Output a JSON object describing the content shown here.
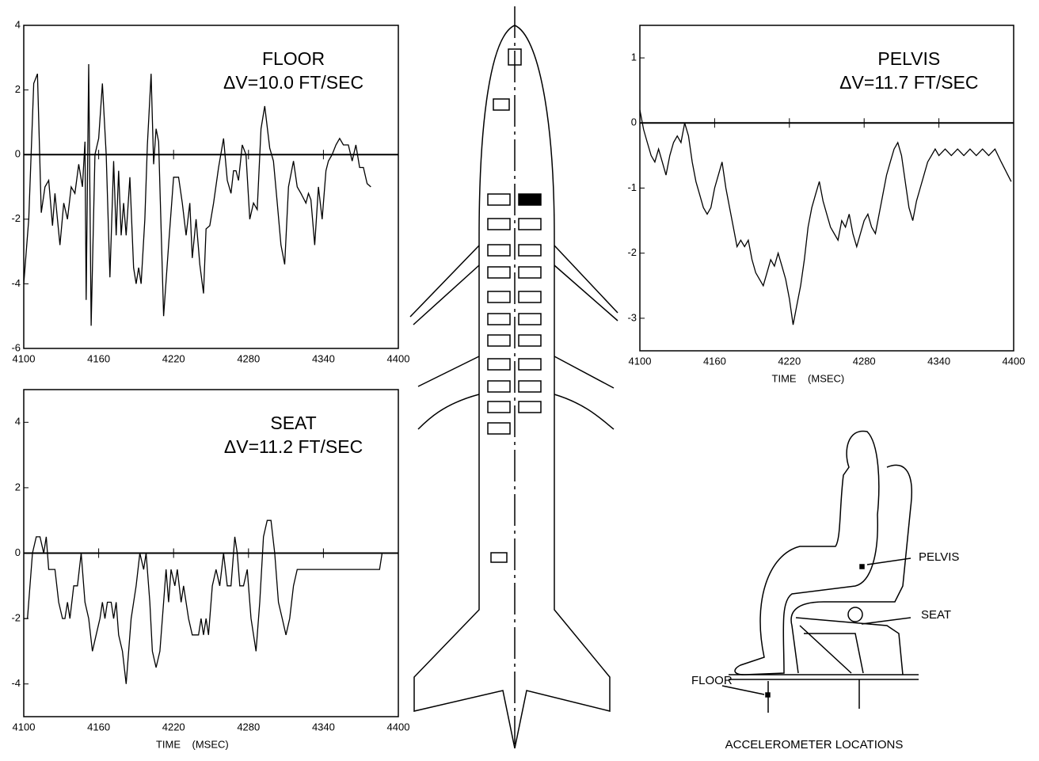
{
  "chart_data": [
    {
      "type": "line",
      "title": "FLOOR",
      "annotation": "ΔV=10.0 FT/SEC",
      "color": "#000000",
      "x": [
        4100,
        4104,
        4108,
        4111,
        4114,
        4117,
        4120,
        4123,
        4125,
        4129,
        4132,
        4135,
        4138,
        4141,
        4144,
        4147,
        4149,
        4150,
        4152,
        4154,
        4157,
        4160,
        4163,
        4166,
        4169,
        4172,
        4174,
        4176,
        4178,
        4180,
        4182,
        4185,
        4188,
        4190,
        4192,
        4194,
        4197,
        4199,
        4202,
        4204,
        4206,
        4208,
        4212,
        4216,
        4220,
        4224,
        4227,
        4230,
        4233,
        4235,
        4238,
        4241,
        4244,
        4246,
        4249,
        4252,
        4256,
        4260,
        4263,
        4266,
        4268,
        4270,
        4272,
        4275,
        4278,
        4281,
        4284,
        4287,
        4290,
        4293,
        4297,
        4300,
        4303,
        4306,
        4309,
        4312,
        4316,
        4319,
        4322,
        4326,
        4328,
        4330,
        4333,
        4336,
        4339,
        4342,
        4344,
        4347,
        4350,
        4353,
        4356,
        4360,
        4363,
        4366,
        4369,
        4372,
        4375,
        4378
      ],
      "values": [
        -4,
        -2,
        2.2,
        2.5,
        -1.8,
        -1,
        -0.8,
        -2.2,
        -1.2,
        -2.8,
        -1.5,
        -2,
        -1,
        -1.2,
        -0.3,
        -1,
        0.4,
        -4.5,
        2.8,
        -5.3,
        0,
        0.5,
        2.2,
        0,
        -3.8,
        -0.2,
        -2.5,
        -0.5,
        -2.5,
        -1.5,
        -2.5,
        -0.7,
        -3.5,
        -4,
        -3.5,
        -4,
        -2,
        0.3,
        2.5,
        -0.3,
        0.8,
        0.4,
        -5,
        -2.8,
        -0.7,
        -0.7,
        -1.5,
        -2.5,
        -1.5,
        -3.2,
        -2,
        -3.4,
        -4.3,
        -2.3,
        -2.2,
        -1.5,
        -0.4,
        0.5,
        -0.8,
        -1.2,
        -0.5,
        -0.5,
        -0.8,
        0.3,
        0,
        -2,
        -1.5,
        -1.7,
        0.8,
        1.5,
        0.2,
        -0.2,
        -1.5,
        -2.8,
        -3.4,
        -1,
        -0.2,
        -1,
        -1.2,
        -1.5,
        -1.2,
        -1.4,
        -2.8,
        -1,
        -2,
        -0.5,
        -0.2,
        0,
        0.3,
        0.5,
        0.3,
        0.3,
        -0.2,
        0.3,
        -0.4,
        -0.4,
        -0.9,
        -1
      ],
      "xlim": [
        4100,
        4400
      ],
      "xticks": [
        4100,
        4160,
        4220,
        4280,
        4340,
        4400
      ],
      "ylim": [
        -6,
        4
      ],
      "yticks": [
        -6,
        -4,
        -2,
        0,
        2,
        4
      ],
      "grid": false
    },
    {
      "type": "line",
      "title": "PELVIS",
      "annotation": "ΔV=11.7 FT/SEC",
      "xlabel": "TIME    (MSEC)",
      "color": "#000000",
      "x": [
        4100,
        4103,
        4106,
        4109,
        4112,
        4115,
        4118,
        4121,
        4124,
        4127,
        4130,
        4133,
        4136,
        4139,
        4142,
        4145,
        4148,
        4151,
        4154,
        4157,
        4160,
        4163,
        4166,
        4169,
        4172,
        4175,
        4178,
        4181,
        4184,
        4187,
        4190,
        4193,
        4196,
        4199,
        4202,
        4205,
        4208,
        4211,
        4214,
        4217,
        4220,
        4223,
        4226,
        4229,
        4232,
        4235,
        4238,
        4241,
        4244,
        4247,
        4250,
        4253,
        4256,
        4259,
        4262,
        4265,
        4268,
        4271,
        4274,
        4277,
        4280,
        4283,
        4286,
        4289,
        4292,
        4295,
        4298,
        4301,
        4304,
        4307,
        4310,
        4313,
        4316,
        4319,
        4322,
        4325,
        4328,
        4331,
        4334,
        4337,
        4340,
        4345,
        4350,
        4355,
        4360,
        4365,
        4370,
        4375,
        4380,
        4385,
        4390,
        4398
      ],
      "values": [
        0.2,
        -0.1,
        -0.3,
        -0.5,
        -0.6,
        -0.4,
        -0.6,
        -0.8,
        -0.5,
        -0.3,
        -0.2,
        -0.3,
        0,
        -0.2,
        -0.6,
        -0.9,
        -1.1,
        -1.3,
        -1.4,
        -1.3,
        -1,
        -0.8,
        -0.6,
        -1,
        -1.3,
        -1.6,
        -1.9,
        -1.8,
        -1.9,
        -1.8,
        -2.1,
        -2.3,
        -2.4,
        -2.5,
        -2.3,
        -2.1,
        -2.2,
        -2,
        -2.2,
        -2.4,
        -2.7,
        -3.1,
        -2.8,
        -2.5,
        -2.1,
        -1.6,
        -1.3,
        -1.1,
        -0.9,
        -1.2,
        -1.4,
        -1.6,
        -1.7,
        -1.8,
        -1.5,
        -1.6,
        -1.4,
        -1.7,
        -1.9,
        -1.7,
        -1.5,
        -1.4,
        -1.6,
        -1.7,
        -1.4,
        -1.1,
        -0.8,
        -0.6,
        -0.4,
        -0.3,
        -0.5,
        -0.9,
        -1.3,
        -1.5,
        -1.2,
        -1,
        -0.8,
        -0.6,
        -0.5,
        -0.4,
        -0.5,
        -0.4,
        -0.5,
        -0.4,
        -0.5,
        -0.4,
        -0.5,
        -0.4,
        -0.5,
        -0.4,
        -0.6,
        -0.9
      ],
      "xlim": [
        4100,
        4400
      ],
      "xticks": [
        4100,
        4160,
        4220,
        4280,
        4340,
        4400
      ],
      "ylim": [
        -3.5,
        1.5
      ],
      "yticks": [
        -3,
        -2,
        -1,
        0,
        1
      ],
      "grid": false
    },
    {
      "type": "line",
      "title": "SEAT",
      "annotation": "ΔV=11.2 FT/SEC",
      "xlabel": "TIME    (MSEC)",
      "color": "#000000",
      "x": [
        4100,
        4103,
        4107,
        4110,
        4113,
        4116,
        4118,
        4120,
        4125,
        4128,
        4131,
        4133,
        4135,
        4137,
        4140,
        4143,
        4146,
        4149,
        4152,
        4155,
        4158,
        4161,
        4163,
        4165,
        4167,
        4170,
        4172,
        4174,
        4176,
        4179,
        4182,
        4186,
        4190,
        4193,
        4196,
        4198,
        4201,
        4203,
        4206,
        4209,
        4212,
        4214,
        4216,
        4218,
        4221,
        4223,
        4226,
        4228,
        4232,
        4235,
        4240,
        4242,
        4244,
        4246,
        4248,
        4251,
        4254,
        4257,
        4260,
        4263,
        4266,
        4269,
        4271,
        4273,
        4276,
        4279,
        4282,
        4286,
        4289,
        4292,
        4295,
        4298,
        4301,
        4304,
        4307,
        4310,
        4313,
        4316,
        4319,
        4385,
        4387
      ],
      "values": [
        -2,
        -2,
        0,
        0.5,
        0.5,
        0,
        0.5,
        -0.5,
        -0.5,
        -1.5,
        -2,
        -2,
        -1.5,
        -2,
        -1,
        -1,
        0,
        -1.5,
        -2,
        -3,
        -2.5,
        -2,
        -1.5,
        -2,
        -1.5,
        -1.5,
        -2,
        -1.5,
        -2.5,
        -3,
        -4,
        -2,
        -1,
        0,
        -0.5,
        0,
        -1.5,
        -3,
        -3.5,
        -3,
        -1.5,
        -0.5,
        -1.5,
        -0.5,
        -1,
        -0.5,
        -1.5,
        -1,
        -2,
        -2.5,
        -2.5,
        -2,
        -2.5,
        -2,
        -2.5,
        -1,
        -0.5,
        -1,
        0,
        -1,
        -1,
        0.5,
        0,
        -1,
        -1,
        -0.5,
        -2,
        -3,
        -1.5,
        0.5,
        1,
        1,
        0,
        -1.5,
        -2,
        -2.5,
        -2,
        -1,
        -0.5,
        -0.5,
        0
      ],
      "xlim": [
        4100,
        4400
      ],
      "xticks": [
        4100,
        4160,
        4220,
        4280,
        4340,
        4400
      ],
      "ylim": [
        -5,
        5
      ],
      "yticks": [
        -4,
        -2,
        0,
        2,
        4
      ],
      "grid": false
    }
  ],
  "diagram": {
    "title": "ACCELEROMETER LOCATIONS",
    "labels": [
      "PELVIS",
      "SEAT",
      "FLOOR"
    ]
  }
}
